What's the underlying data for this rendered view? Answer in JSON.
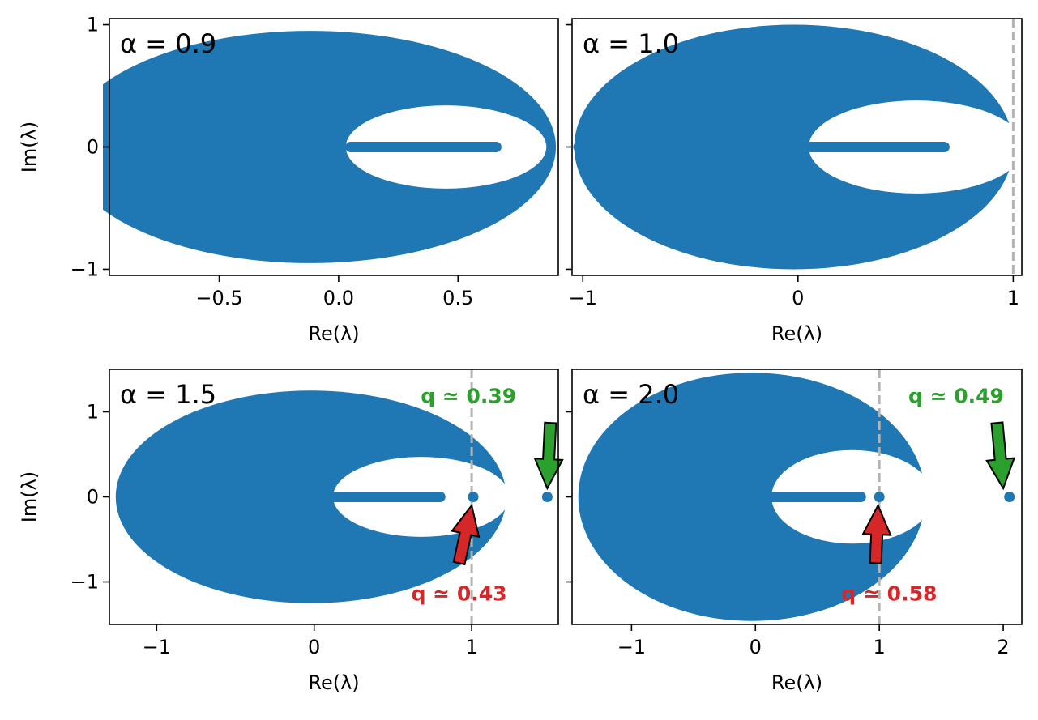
{
  "chart_data": [
    {
      "type": "scatter",
      "title": "α = 0.9",
      "xlabel": "Re(λ)",
      "ylabel": "Im(λ)",
      "xlim": [
        -0.96,
        0.92
      ],
      "ylim": [
        -1.05,
        1.05
      ],
      "xticks": [
        -0.5,
        0.0,
        0.5
      ],
      "xtick_labels": [
        "−0.5",
        "0.0",
        "0.5"
      ],
      "yticks": [
        -1,
        0,
        1
      ],
      "ytick_labels": [
        "−1",
        "0",
        "1"
      ],
      "color": "#1f77b4",
      "outer_ellipse": {
        "center": [
          -0.12,
          0
        ],
        "rx": 1.03,
        "ry": 0.95
      },
      "inner_hole": {
        "center": [
          0.45,
          0
        ],
        "rx": 0.42,
        "ry": 0.34
      },
      "real_segments": [
        [
          -0.93,
          -0.55
        ],
        [
          0.05,
          0.66
        ]
      ],
      "outliers": [],
      "boundary_line": null,
      "annotations": []
    },
    {
      "type": "scatter",
      "title": "α = 1.0",
      "xlabel": "Re(λ)",
      "ylabel": "",
      "xlim": [
        -1.05,
        1.04
      ],
      "ylim": [
        -1.05,
        1.05
      ],
      "xticks": [
        -1,
        0,
        1
      ],
      "xtick_labels": [
        "−1",
        "0",
        "1"
      ],
      "yticks": [
        -1,
        0,
        1
      ],
      "ytick_labels": [],
      "color": "#1f77b4",
      "outer_ellipse": {
        "center": [
          -0.02,
          0
        ],
        "rx": 1.02,
        "ry": 1.0
      },
      "inner_hole": {
        "center": [
          0.55,
          0
        ],
        "rx": 0.5,
        "ry": 0.38
      },
      "real_segments": [
        [
          -1.02,
          -0.72
        ],
        [
          0.05,
          0.68
        ]
      ],
      "outliers": [],
      "boundary_line": 1,
      "annotations": []
    },
    {
      "type": "scatter",
      "title": "α = 1.5",
      "xlabel": "Re(λ)",
      "ylabel": "Im(λ)",
      "xlim": [
        -1.3,
        1.55
      ],
      "ylim": [
        -1.5,
        1.5
      ],
      "xticks": [
        -1,
        0,
        1
      ],
      "xtick_labels": [
        "−1",
        "0",
        "1"
      ],
      "yticks": [
        -1,
        0,
        1
      ],
      "ytick_labels": [
        "−1",
        "0",
        "1"
      ],
      "color": "#1f77b4",
      "outer_ellipse": {
        "center": [
          -0.02,
          0
        ],
        "rx": 1.24,
        "ry": 1.25
      },
      "inner_hole": {
        "center": [
          0.68,
          0
        ],
        "rx": 0.56,
        "ry": 0.47
      },
      "real_segments": [
        [
          0.08,
          0.8
        ]
      ],
      "outliers": [
        [
          1.01,
          0
        ],
        [
          1.48,
          0
        ]
      ],
      "boundary_line": 1,
      "annotations": [
        {
          "text": "q ≃  0.39",
          "color": "#2ca02c",
          "x": 0.98,
          "y": 1.17,
          "arrow_from": [
            1.5,
            0.87
          ],
          "arrow_to": [
            1.48,
            0.1
          ]
        },
        {
          "text": "q ≃  0.43",
          "color": "#d62728",
          "x": 0.92,
          "y": -1.15,
          "arrow_from": [
            0.92,
            -0.78
          ],
          "arrow_to": [
            1.0,
            -0.1
          ]
        }
      ]
    },
    {
      "type": "scatter",
      "title": "α = 2.0",
      "xlabel": "Re(λ)",
      "ylabel": "",
      "xlim": [
        -1.48,
        2.15
      ],
      "ylim": [
        -1.5,
        1.5
      ],
      "xticks": [
        -1,
        0,
        1,
        2
      ],
      "xtick_labels": [
        "−1",
        "0",
        "1",
        "2"
      ],
      "yticks": [
        -1,
        0,
        1
      ],
      "ytick_labels": [],
      "color": "#1f77b4",
      "outer_ellipse": {
        "center": [
          -0.03,
          0
        ],
        "rx": 1.4,
        "ry": 1.46
      },
      "inner_hole": {
        "center": [
          0.78,
          0
        ],
        "rx": 0.65,
        "ry": 0.55
      },
      "real_segments": [
        [
          0.08,
          0.85
        ]
      ],
      "outliers": [
        [
          1.0,
          0
        ],
        [
          2.05,
          0
        ]
      ],
      "boundary_line": 1,
      "annotations": [
        {
          "text": "q ≃  0.49",
          "color": "#2ca02c",
          "x": 1.62,
          "y": 1.17,
          "arrow_from": [
            1.95,
            0.87
          ],
          "arrow_to": [
            2.0,
            0.1
          ]
        },
        {
          "text": "q ≃  0.58",
          "color": "#d62728",
          "x": 1.08,
          "y": -1.15,
          "arrow_from": [
            0.97,
            -0.78
          ],
          "arrow_to": [
            0.99,
            -0.1
          ]
        }
      ]
    }
  ]
}
